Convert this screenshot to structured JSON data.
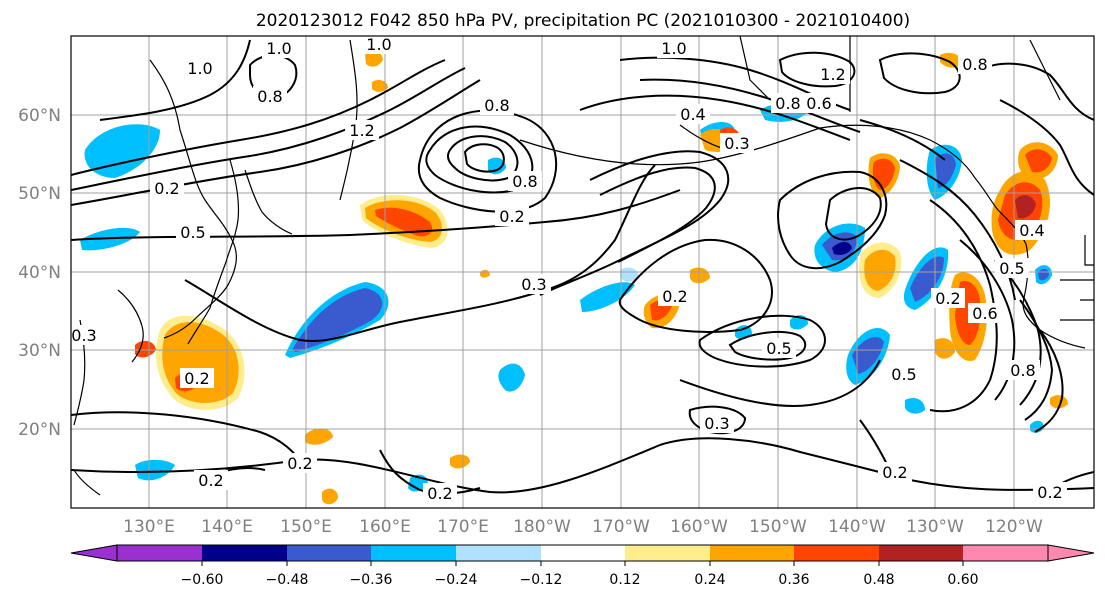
{
  "title": "2020123012 F042 850 hPa PV, precipitation PC (2021010300 - 2021010400)",
  "lat_labels": [
    "60°N",
    "50°N",
    "40°N",
    "30°N",
    "20°N"
  ],
  "lon_labels": [
    "130°E",
    "140°E",
    "150°E",
    "160°E",
    "170°E",
    "180°W",
    "170°W",
    "160°W",
    "150°W",
    "140°W",
    "130°W",
    "120°W"
  ],
  "colorbar": {
    "ticks": [
      "−0.60",
      "−0.48",
      "−0.36",
      "−0.24",
      "−0.12",
      "0.12",
      "0.24",
      "0.36",
      "0.48",
      "0.60"
    ],
    "colors": [
      "#9b30d0",
      "#00008b",
      "#3a5bd0",
      "#00bfff",
      "#b0e2ff",
      "#ffffff",
      "#ffec8b",
      "#ffa500",
      "#ff4500",
      "#b22222",
      "#ff88b0"
    ]
  },
  "contour_labels": [
    "1.0",
    "1.0",
    "0.8",
    "1.2",
    "1.0",
    "0.8",
    "0.4",
    "0.8",
    "0.6",
    "1.2",
    "0.8",
    "0.5",
    "0.3",
    "0.8",
    "0.2",
    "0.2",
    "0.5",
    "0.4",
    "0.2",
    "0.3",
    "0.2",
    "0.5",
    "0.2",
    "0.3",
    "0.8",
    "0.6",
    "0.3",
    "0.2",
    "0.2",
    "0.2",
    "0.2",
    "1.0",
    "0.5",
    "0.2"
  ]
}
